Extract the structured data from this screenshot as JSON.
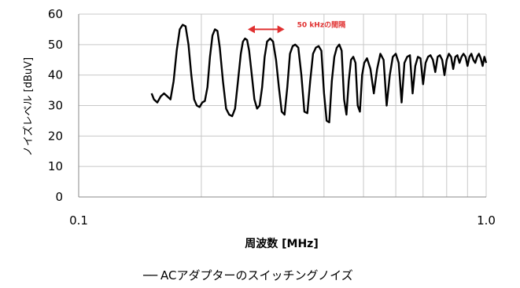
{
  "chart_data": {
    "type": "line",
    "title": "",
    "xlabel": "周波数 [MHz]",
    "ylabel": "ノイズレベル [dBuV]",
    "xscale": "log",
    "xlim": [
      0.1,
      1.0
    ],
    "ylim": [
      0,
      60
    ],
    "xticks": [
      {
        "value": 0.1,
        "label": "0.1"
      },
      {
        "value": 1.0,
        "label": "1.0"
      }
    ],
    "yticks": [
      0,
      10,
      20,
      30,
      40,
      50,
      60
    ],
    "grid": true,
    "legend": {
      "position": "bottom",
      "marker": "──"
    },
    "annotation": {
      "text": "50 kHzの間隔",
      "color": "#e03030",
      "x_from": 0.26,
      "x_to": 0.32,
      "y": 55
    },
    "series": [
      {
        "name": "ACアダプターのスイッチングノイズ",
        "color": "#000000",
        "x": [
          0.151,
          0.153,
          0.156,
          0.159,
          0.162,
          0.165,
          0.168,
          0.171,
          0.174,
          0.177,
          0.18,
          0.183,
          0.186,
          0.189,
          0.192,
          0.195,
          0.198,
          0.201,
          0.204,
          0.207,
          0.21,
          0.213,
          0.216,
          0.219,
          0.222,
          0.226,
          0.23,
          0.234,
          0.238,
          0.242,
          0.246,
          0.25,
          0.253,
          0.256,
          0.259,
          0.262,
          0.266,
          0.27,
          0.274,
          0.278,
          0.282,
          0.286,
          0.29,
          0.295,
          0.3,
          0.305,
          0.31,
          0.315,
          0.32,
          0.325,
          0.33,
          0.335,
          0.34,
          0.346,
          0.352,
          0.358,
          0.364,
          0.37,
          0.376,
          0.382,
          0.388,
          0.394,
          0.4,
          0.406,
          0.412,
          0.418,
          0.424,
          0.43,
          0.436,
          0.442,
          0.448,
          0.454,
          0.46,
          0.466,
          0.472,
          0.478,
          0.484,
          0.49,
          0.496,
          0.502,
          0.51,
          0.52,
          0.53,
          0.54,
          0.55,
          0.56,
          0.57,
          0.58,
          0.59,
          0.6,
          0.61,
          0.62,
          0.63,
          0.64,
          0.65,
          0.66,
          0.67,
          0.68,
          0.69,
          0.7,
          0.71,
          0.72,
          0.73,
          0.74,
          0.75,
          0.76,
          0.77,
          0.78,
          0.79,
          0.8,
          0.81,
          0.82,
          0.83,
          0.84,
          0.85,
          0.86,
          0.87,
          0.88,
          0.89,
          0.9,
          0.91,
          0.92,
          0.93,
          0.94,
          0.95,
          0.96,
          0.97,
          0.98,
          0.99,
          1.0
        ],
        "y": [
          34,
          32,
          31,
          33,
          34,
          33,
          32,
          38,
          48,
          55,
          56.5,
          56,
          50,
          40,
          32,
          30,
          29.5,
          31,
          31.5,
          36,
          46,
          53,
          55,
          54.5,
          49,
          38,
          29,
          27,
          26.5,
          29,
          38,
          47,
          51,
          52,
          51.5,
          48,
          40,
          32,
          29,
          30,
          36,
          46,
          51,
          52,
          51,
          45,
          36,
          28,
          27,
          36,
          47,
          49.5,
          50,
          49,
          40,
          28,
          27.5,
          38,
          47,
          49,
          49.5,
          48,
          34,
          25,
          24.5,
          38,
          46,
          49,
          50,
          48,
          32,
          27,
          38,
          45,
          46,
          44,
          30,
          28,
          40,
          44,
          45.5,
          42,
          34,
          42,
          47,
          45,
          30,
          40,
          46,
          47,
          44,
          31,
          44,
          46,
          46.5,
          34,
          43,
          46,
          45.5,
          37,
          44,
          46,
          46.5,
          45,
          41,
          46,
          46.5,
          45,
          40,
          45,
          47,
          46,
          42,
          46,
          46.5,
          44,
          46,
          47,
          46,
          43,
          46,
          47,
          45,
          44,
          46,
          47,
          45.5,
          43,
          46,
          44
        ]
      }
    ]
  }
}
